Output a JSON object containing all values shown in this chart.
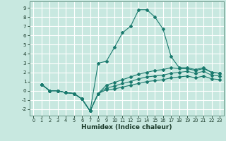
{
  "xlabel": "Humidex (Indice chaleur)",
  "background_color": "#c8e8e0",
  "grid_color": "#ffffff",
  "line_color": "#1a7a6e",
  "xlim": [
    -0.5,
    23.5
  ],
  "ylim": [
    -2.7,
    9.7
  ],
  "xticks": [
    0,
    1,
    2,
    3,
    4,
    5,
    6,
    7,
    8,
    9,
    10,
    11,
    12,
    13,
    14,
    15,
    16,
    17,
    18,
    19,
    20,
    21,
    22,
    23
  ],
  "yticks": [
    -2,
    -1,
    0,
    1,
    2,
    3,
    4,
    5,
    6,
    7,
    8,
    9
  ],
  "lines": [
    {
      "x": [
        1,
        2,
        3,
        4,
        5,
        6,
        7,
        8,
        9,
        10,
        11,
        12,
        13,
        14,
        15,
        16,
        17,
        18,
        19,
        20,
        21,
        22,
        23
      ],
      "y": [
        0.7,
        0.0,
        0.0,
        -0.2,
        -0.3,
        -0.9,
        -2.2,
        3.0,
        3.2,
        4.7,
        6.3,
        7.0,
        8.8,
        8.8,
        8.0,
        6.7,
        3.7,
        2.5,
        2.5,
        2.3,
        2.5,
        2.0,
        1.9
      ]
    },
    {
      "x": [
        1,
        2,
        3,
        4,
        5,
        6,
        7,
        8,
        9,
        10,
        11,
        12,
        13,
        14,
        15,
        16,
        17,
        18,
        19,
        20,
        21,
        22,
        23
      ],
      "y": [
        0.7,
        0.0,
        0.0,
        -0.2,
        -0.3,
        -0.9,
        -2.2,
        -0.3,
        0.6,
        0.9,
        1.2,
        1.5,
        1.8,
        2.0,
        2.2,
        2.3,
        2.5,
        2.4,
        2.4,
        2.2,
        2.4,
        2.0,
        1.9
      ]
    },
    {
      "x": [
        1,
        2,
        3,
        4,
        5,
        6,
        7,
        8,
        9,
        10,
        11,
        12,
        13,
        14,
        15,
        16,
        17,
        18,
        19,
        20,
        21,
        22,
        23
      ],
      "y": [
        0.7,
        0.0,
        0.0,
        -0.2,
        -0.3,
        -0.9,
        -2.2,
        -0.3,
        0.3,
        0.5,
        0.8,
        1.0,
        1.3,
        1.5,
        1.6,
        1.7,
        1.9,
        2.0,
        2.1,
        1.9,
        2.1,
        1.7,
        1.6
      ]
    },
    {
      "x": [
        1,
        2,
        3,
        4,
        5,
        6,
        7,
        8,
        9,
        10,
        11,
        12,
        13,
        14,
        15,
        16,
        17,
        18,
        19,
        20,
        21,
        22,
        23
      ],
      "y": [
        0.7,
        0.0,
        0.0,
        -0.2,
        -0.3,
        -0.9,
        -2.2,
        -0.3,
        0.1,
        0.2,
        0.4,
        0.6,
        0.8,
        1.0,
        1.1,
        1.2,
        1.4,
        1.5,
        1.6,
        1.4,
        1.6,
        1.3,
        1.2
      ]
    }
  ]
}
